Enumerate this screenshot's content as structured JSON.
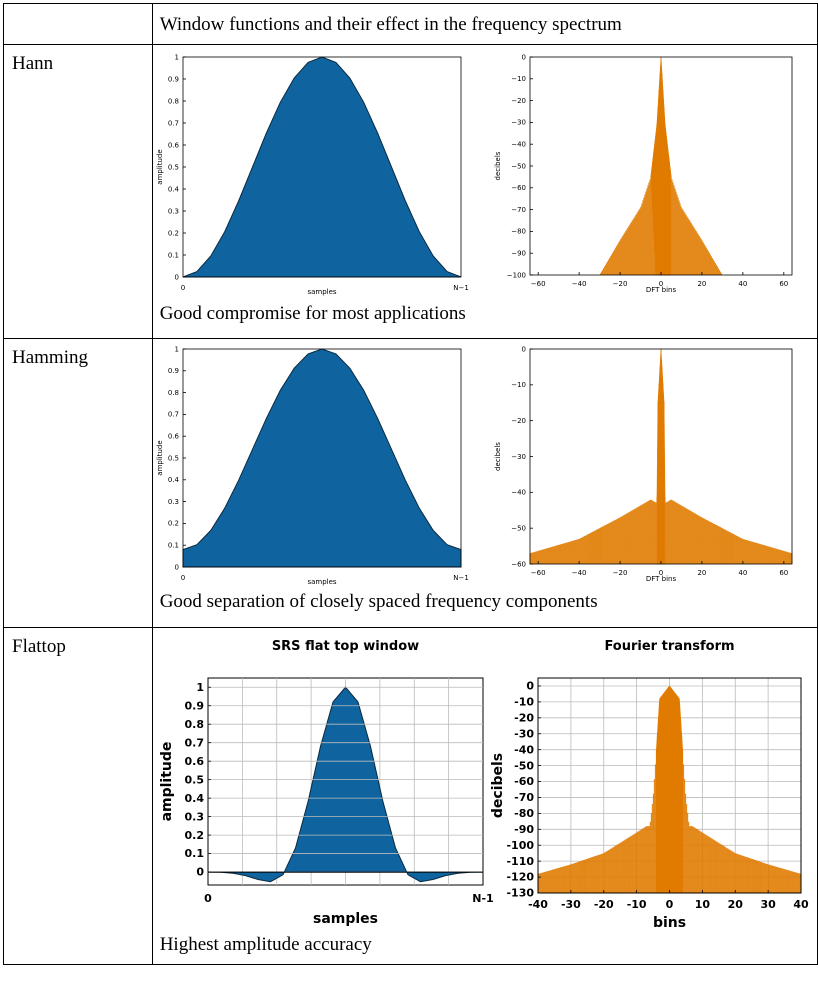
{
  "header": {
    "corner": "",
    "title": "Window functions and their effect in the frequency spectrum"
  },
  "rows": [
    {
      "label": "Hann",
      "caption": "Good compromise for most applications"
    },
    {
      "label": "Hamming",
      "caption": "Good separation of closely spaced frequency components"
    },
    {
      "label": "Flattop",
      "caption": "Highest amplitude accuracy"
    }
  ],
  "chart_data": [
    {
      "type": "area",
      "window": "hann",
      "xlabel": "samples",
      "ylabel": "amplitude",
      "xticks": [
        "0",
        "N−1"
      ],
      "yticks": [
        "0",
        "0.1",
        "0.2",
        "0.3",
        "0.4",
        "0.5",
        "0.6",
        "0.7",
        "0.8",
        "0.9",
        "1"
      ],
      "ylim": [
        0,
        1
      ],
      "values": [
        0,
        0.0245,
        0.0955,
        0.2061,
        0.3455,
        0.5,
        0.6545,
        0.7939,
        0.9045,
        0.9755,
        1,
        0.9755,
        0.9045,
        0.7939,
        0.6545,
        0.5,
        0.3455,
        0.2061,
        0.0955,
        0.0245,
        0
      ],
      "color": "#0f64a0"
    },
    {
      "type": "bar",
      "window": "hann",
      "xlabel": "DFT bins",
      "ylabel": "decibels",
      "xticks": [
        "−60",
        "−40",
        "−20",
        "0",
        "20",
        "40",
        "60"
      ],
      "yticks": [
        "0",
        "−10",
        "−20",
        "−30",
        "−40",
        "−50",
        "−60",
        "−70",
        "−80",
        "−90",
        "−100"
      ],
      "xlim": [
        -64,
        64
      ],
      "ylim": [
        -100,
        0
      ],
      "envelope": [
        {
          "x": 0,
          "y": 0
        },
        {
          "x": 2,
          "y": -31
        },
        {
          "x": 5,
          "y": -55
        },
        {
          "x": 10,
          "y": -69
        },
        {
          "x": 20,
          "y": -84
        },
        {
          "x": 30,
          "y": -100
        }
      ],
      "color": "#e07b00"
    },
    {
      "type": "area",
      "window": "hamming",
      "xlabel": "samples",
      "ylabel": "amplitude",
      "xticks": [
        "0",
        "N−1"
      ],
      "yticks": [
        "0",
        "0.1",
        "0.2",
        "0.3",
        "0.4",
        "0.5",
        "0.6",
        "0.7",
        "0.8",
        "0.9",
        "1"
      ],
      "ylim": [
        0,
        1
      ],
      "values": [
        0.08,
        0.1025,
        0.1679,
        0.2696,
        0.3978,
        0.54,
        0.6822,
        0.8104,
        0.9121,
        0.9775,
        1,
        0.9775,
        0.9121,
        0.8104,
        0.6822,
        0.54,
        0.3978,
        0.2696,
        0.1679,
        0.1025,
        0.08
      ],
      "color": "#0f64a0"
    },
    {
      "type": "bar",
      "window": "hamming",
      "xlabel": "DFT bins",
      "ylabel": "decibels",
      "xticks": [
        "−60",
        "−40",
        "−20",
        "0",
        "20",
        "40",
        "60"
      ],
      "yticks": [
        "0",
        "−10",
        "−20",
        "−30",
        "−40",
        "−50",
        "−60"
      ],
      "xlim": [
        -64,
        64
      ],
      "ylim": [
        -60,
        0
      ],
      "envelope": [
        {
          "x": 0,
          "y": 0
        },
        {
          "x": 1.5,
          "y": -15
        },
        {
          "x": 2,
          "y": -43
        },
        {
          "x": 5,
          "y": -42
        },
        {
          "x": 20,
          "y": -47
        },
        {
          "x": 40,
          "y": -53
        },
        {
          "x": 64,
          "y": -57
        }
      ],
      "color": "#e07b00"
    },
    {
      "type": "area",
      "window": "flattop",
      "title": "SRS flat top window",
      "xlabel": "samples",
      "ylabel": "amplitude",
      "xticks": [
        "0",
        "N-1"
      ],
      "yticks": [
        "0",
        "0.1",
        "0.2",
        "0.3",
        "0.4",
        "0.5",
        "0.6",
        "0.7",
        "0.8",
        "0.9",
        "1"
      ],
      "ylim": [
        -0.07,
        1.05
      ],
      "values": [
        0,
        -0.001,
        -0.006,
        -0.019,
        -0.04,
        -0.052,
        -0.015,
        0.13,
        0.38,
        0.68,
        0.92,
        1,
        0.92,
        0.68,
        0.38,
        0.13,
        -0.015,
        -0.052,
        -0.04,
        -0.019,
        -0.006,
        -0.001,
        0
      ],
      "color": "#0f64a0"
    },
    {
      "type": "bar",
      "window": "flattop",
      "title": "Fourier transform",
      "xlabel": "bins",
      "ylabel": "decibels",
      "xticks": [
        "-40",
        "-30",
        "-20",
        "-10",
        "0",
        "10",
        "20",
        "30",
        "40"
      ],
      "yticks": [
        "0",
        "-10",
        "-20",
        "-30",
        "-40",
        "-50",
        "-60",
        "-70",
        "-80",
        "-90",
        "-100",
        "-110",
        "-120",
        "-130"
      ],
      "xlim": [
        -40,
        40
      ],
      "ylim": [
        -130,
        5
      ],
      "envelope": [
        {
          "x": 0,
          "y": 0
        },
        {
          "x": 3,
          "y": -8
        },
        {
          "x": 4,
          "y": -40
        },
        {
          "x": 5,
          "y": -70
        },
        {
          "x": 6,
          "y": -88
        },
        {
          "x": 7,
          "y": -88
        },
        {
          "x": 10,
          "y": -92
        },
        {
          "x": 20,
          "y": -105
        },
        {
          "x": 30,
          "y": -112
        },
        {
          "x": 40,
          "y": -118
        }
      ],
      "color": "#e07b00"
    }
  ]
}
